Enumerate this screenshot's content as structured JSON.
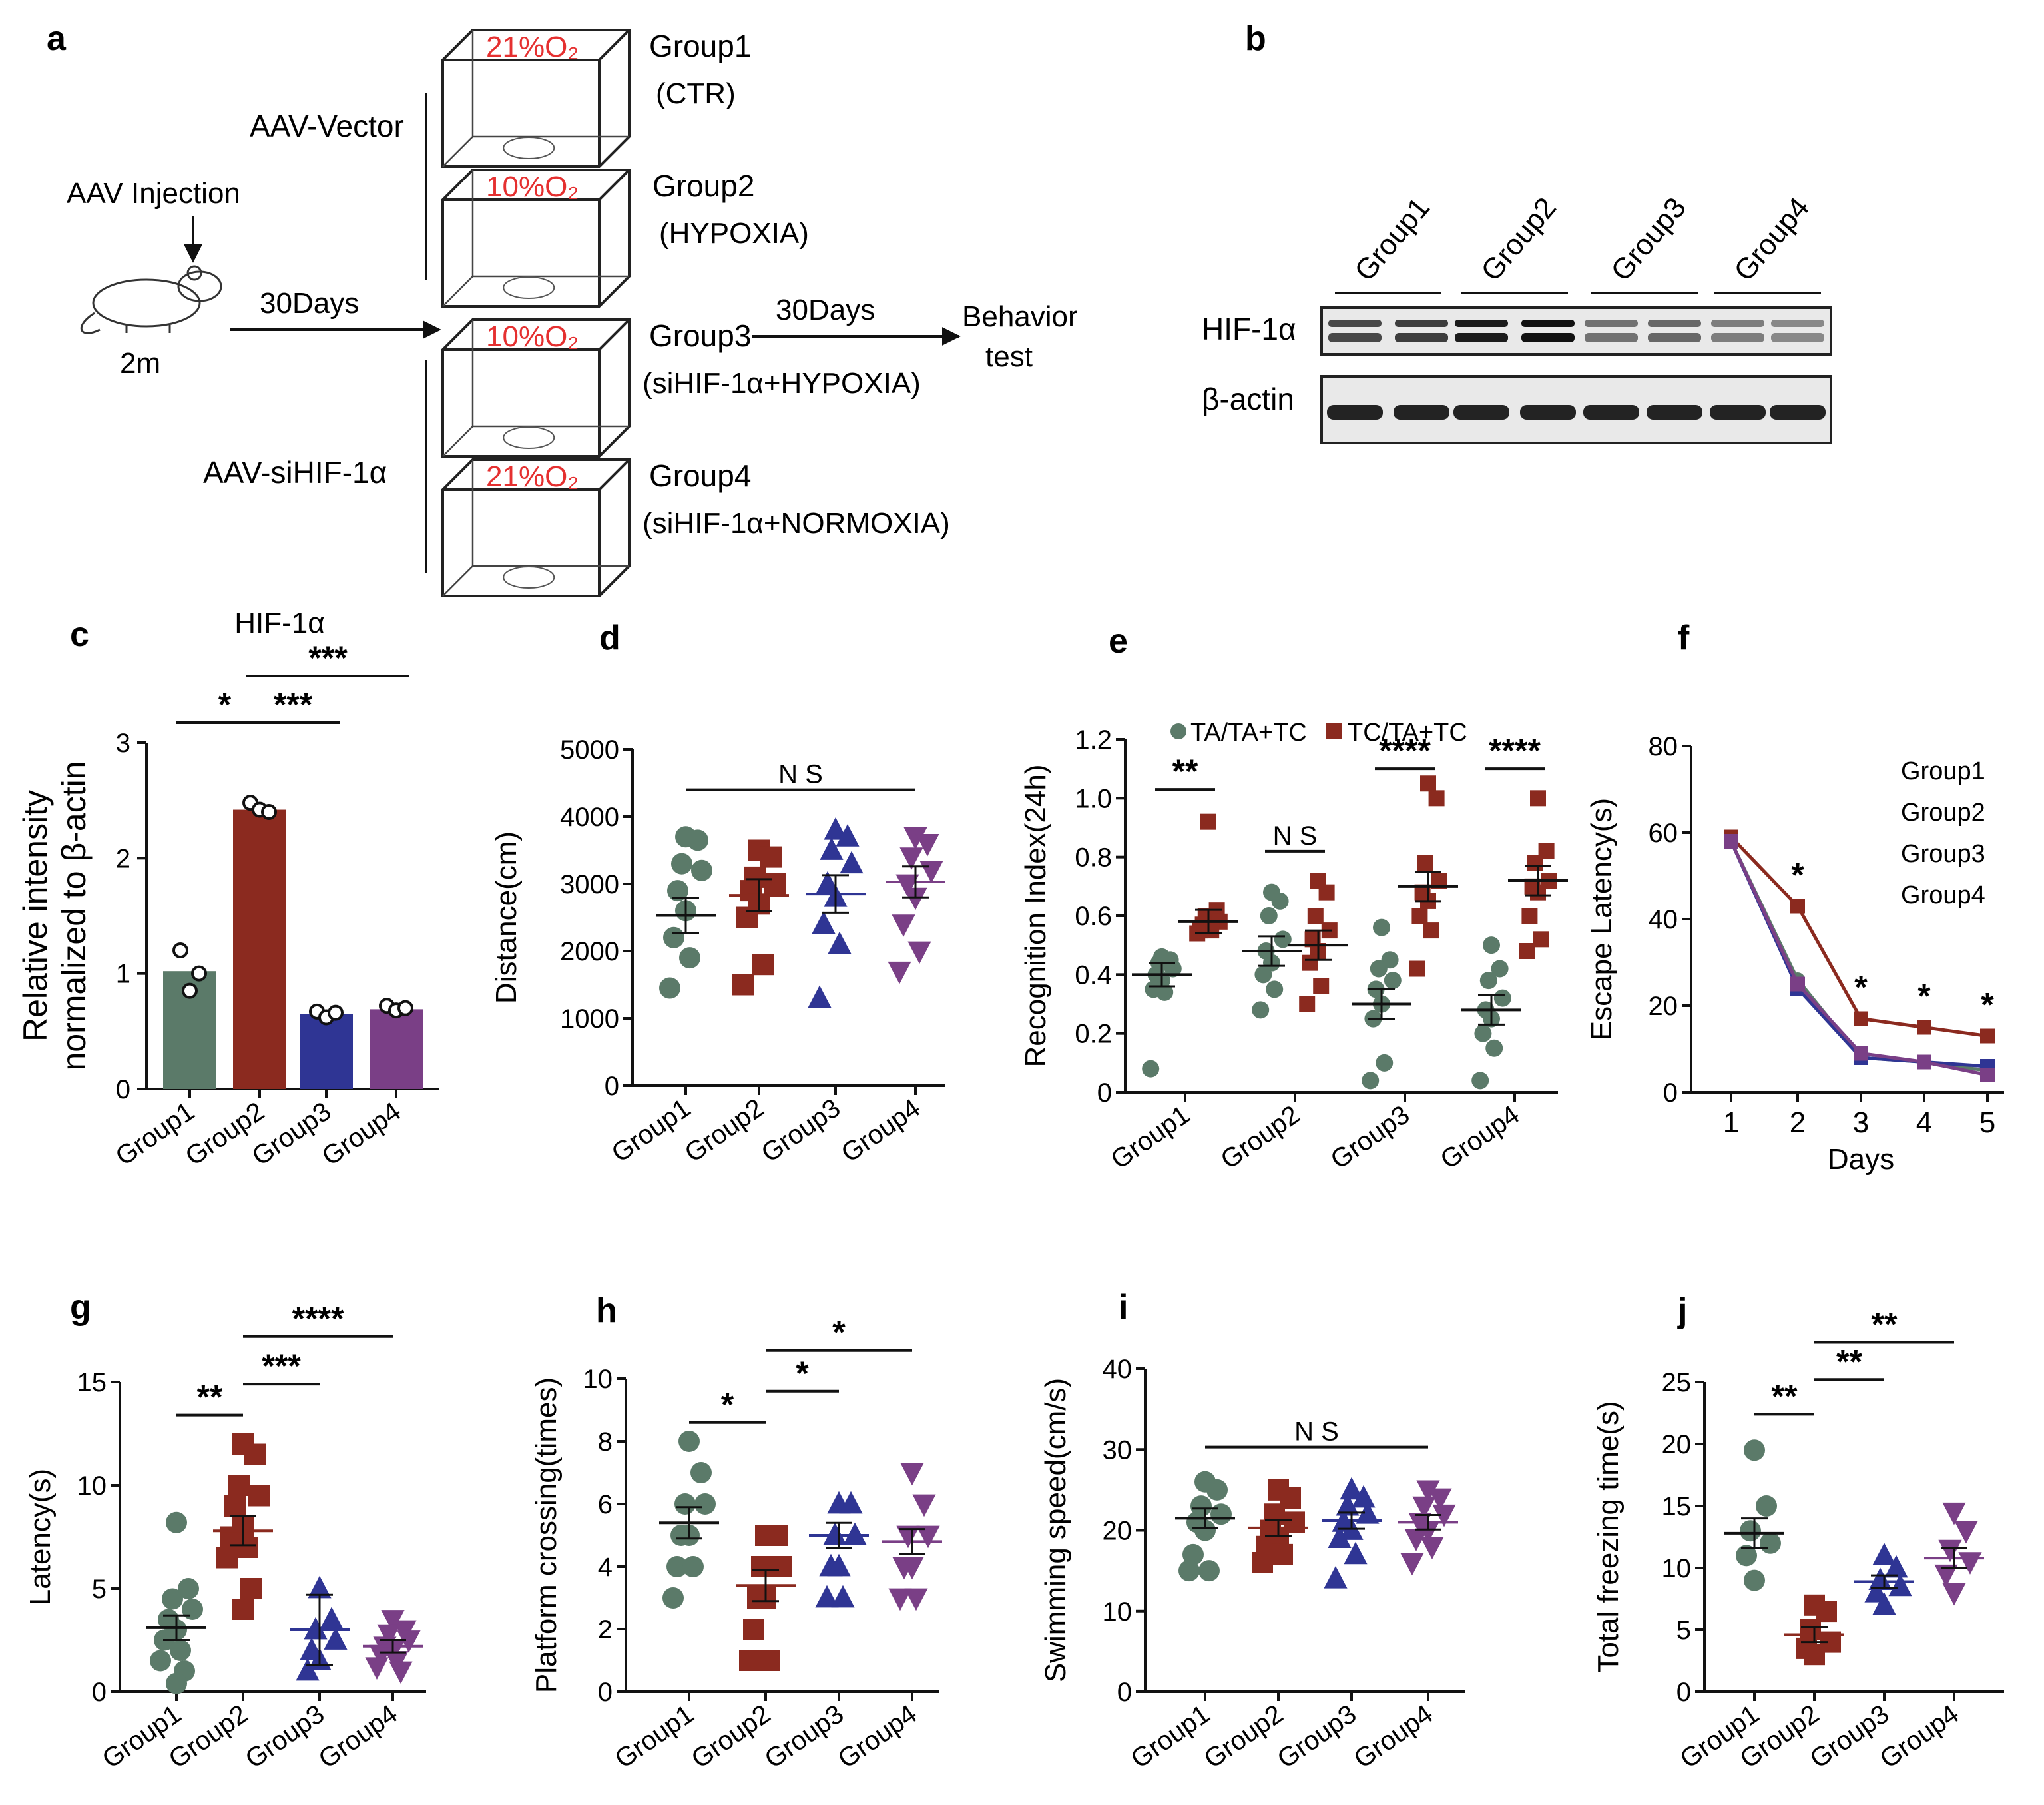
{
  "colors": {
    "group1": "#5b7a69",
    "group2": "#8b2a1f",
    "group3": "#2f3594",
    "group4": "#7a3f86",
    "red_text": "#e53030"
  },
  "panel_a": {
    "letter": "a",
    "injection": "AAV Injection",
    "age": "2m",
    "days1": "30Days",
    "vector": "AAV-Vector",
    "sihif": "AAV-siHIF-1α",
    "days2": "30Days",
    "behavior1": "Behavior",
    "behavior2": "test",
    "boxes": [
      {
        "o2": "21%O₂",
        "group": "Group1",
        "desc": "(CTR)"
      },
      {
        "o2": "10%O₂",
        "group": "Group2",
        "desc": "(HYPOXIA)"
      },
      {
        "o2": "10%O₂",
        "group": "Group3",
        "desc": "(siHIF-1α+HYPOXIA)"
      },
      {
        "o2": "21%O₂",
        "group": "Group4",
        "desc": "(siHIF-1α+NORMOXIA)"
      }
    ]
  },
  "panel_b": {
    "letter": "b",
    "groups": [
      "Group1",
      "Group2",
      "Group3",
      "Group4"
    ],
    "row1": "HIF-1α",
    "row2": "β-actin"
  },
  "chart_data": [
    {
      "panel": "c",
      "type": "bar",
      "title": "HIF-1α",
      "ylabel1": "Relative intensity",
      "ylabel2": "normalized to β-actin",
      "categories": [
        "Group1",
        "Group2",
        "Group3",
        "Group4"
      ],
      "values": [
        1.02,
        2.42,
        0.65,
        0.69
      ],
      "points": [
        [
          1.2,
          0.85,
          1.0
        ],
        [
          2.48,
          2.42,
          2.4
        ],
        [
          0.67,
          0.62,
          0.66
        ],
        [
          0.72,
          0.68,
          0.7
        ]
      ],
      "ylim": [
        0,
        3
      ],
      "yticks": [
        "0",
        "1",
        "2",
        "3"
      ],
      "sig": [
        {
          "from": 0,
          "to": 1,
          "level": 2.95,
          "text": "*"
        },
        {
          "from": 1,
          "to": 2,
          "level": 2.95,
          "text": "***"
        },
        {
          "from": 1,
          "to": 3,
          "level": 3.3,
          "text": "***"
        }
      ]
    },
    {
      "panel": "d",
      "type": "scatter",
      "ylabel": "Distance(cm)",
      "categories": [
        "Group1",
        "Group2",
        "Group3",
        "Group4"
      ],
      "ylim": [
        0,
        5000
      ],
      "yticks": [
        "0",
        "1000",
        "2000",
        "3000",
        "4000",
        "5000"
      ],
      "points": [
        [
          3700,
          3650,
          3300,
          3200,
          2900,
          2600,
          2200,
          1900,
          1450
        ],
        [
          3500,
          3400,
          3100,
          3000,
          2900,
          2700,
          2500,
          1800,
          1500
        ],
        [
          3800,
          3700,
          3500,
          3300,
          3000,
          2800,
          2400,
          2100,
          1300
        ],
        [
          3700,
          3600,
          3400,
          3200,
          3000,
          2800,
          2400,
          2000,
          1700
        ]
      ],
      "means": [
        2530,
        2830,
        2850,
        3030
      ],
      "sems": [
        260,
        240,
        280,
        230
      ],
      "sig": [
        {
          "from": 0,
          "to": 3,
          "level": 4400,
          "text": "N S"
        }
      ]
    },
    {
      "panel": "e",
      "type": "scatter",
      "ylabel": "Recognition Index(24h)",
      "categories": [
        "Group1",
        "Group2",
        "Group3",
        "Group4"
      ],
      "legend": [
        "TA/TA+TC",
        "TC/TA+TC"
      ],
      "ylim": [
        0,
        1.2
      ],
      "yticks": [
        "0",
        "0.2",
        "0.4",
        "0.6",
        "0.8",
        "1.0",
        "1.2"
      ],
      "ta": [
        [
          0.46,
          0.45,
          0.44,
          0.42,
          0.4,
          0.38,
          0.35,
          0.34,
          0.08
        ],
        [
          0.68,
          0.65,
          0.6,
          0.52,
          0.48,
          0.44,
          0.4,
          0.35,
          0.28
        ],
        [
          0.56,
          0.45,
          0.42,
          0.38,
          0.35,
          0.3,
          0.25,
          0.1,
          0.04
        ],
        [
          0.5,
          0.42,
          0.38,
          0.32,
          0.28,
          0.25,
          0.2,
          0.15,
          0.04
        ]
      ],
      "tc": [
        [
          0.92,
          0.62,
          0.6,
          0.58,
          0.57,
          0.56,
          0.55,
          0.55,
          0.54
        ],
        [
          0.72,
          0.68,
          0.6,
          0.55,
          0.52,
          0.48,
          0.44,
          0.36,
          0.3
        ],
        [
          1.05,
          1.0,
          0.78,
          0.72,
          0.68,
          0.65,
          0.6,
          0.55,
          0.42
        ],
        [
          1.0,
          0.82,
          0.78,
          0.72,
          0.7,
          0.68,
          0.6,
          0.52,
          0.48
        ]
      ],
      "ta_means": [
        0.4,
        0.48,
        0.3,
        0.28
      ],
      "tc_means": [
        0.58,
        0.5,
        0.7,
        0.72
      ],
      "sems": [
        0.04,
        0.05,
        0.05,
        0.05
      ],
      "sig": [
        {
          "group": 0,
          "text": "**",
          "level": 1.03
        },
        {
          "group": 1,
          "text": "N S",
          "level": 0.82
        },
        {
          "group": 2,
          "text": "****",
          "level": 1.1
        },
        {
          "group": 3,
          "text": "****",
          "level": 1.1
        }
      ]
    },
    {
      "panel": "f",
      "type": "line",
      "ylabel": "Escape Latency(s)",
      "xlabel": "Days",
      "x": [
        "1",
        "2",
        "3",
        "4",
        "5"
      ],
      "ylim": [
        0,
        80
      ],
      "yticks": [
        "0",
        "20",
        "40",
        "60",
        "80"
      ],
      "series": [
        {
          "name": "Group1",
          "values": [
            58,
            26,
            8,
            7,
            5
          ]
        },
        {
          "name": "Group2",
          "values": [
            59,
            43,
            17,
            15,
            13
          ]
        },
        {
          "name": "Group3",
          "values": [
            58,
            24,
            8,
            7,
            6
          ]
        },
        {
          "name": "Group4",
          "values": [
            58,
            25,
            9,
            7,
            4
          ]
        }
      ],
      "stars": [
        "",
        "*",
        "*",
        "*",
        "*"
      ]
    },
    {
      "panel": "g",
      "type": "scatter",
      "ylabel": "Latency(s)",
      "categories": [
        "Group1",
        "Group2",
        "Group3",
        "Group4"
      ],
      "ylim": [
        0,
        15
      ],
      "yticks": [
        "0",
        "5",
        "10",
        "15"
      ],
      "points": [
        [
          8.2,
          5,
          4.5,
          4,
          3.5,
          3,
          2.5,
          2,
          1.5,
          1,
          0.4
        ],
        [
          12,
          11.5,
          10,
          9.5,
          9,
          8,
          7.5,
          7,
          6.5,
          5,
          4
        ],
        [
          5,
          3.5,
          3,
          2.5,
          2,
          1.5,
          1
        ],
        [
          3.5,
          3,
          2.8,
          2.5,
          2.2,
          2,
          1.8,
          1.5,
          1.2,
          1
        ]
      ],
      "means": [
        3.1,
        7.8,
        3.0,
        2.2
      ],
      "sems": [
        0.6,
        0.7,
        1.7,
        0.3
      ],
      "sig": [
        {
          "from": 0,
          "to": 1,
          "level": 13.4,
          "text": "**"
        },
        {
          "from": 1,
          "to": 2,
          "level": 14.9,
          "text": "***"
        },
        {
          "from": 1,
          "to": 3,
          "level": 17.2,
          "text": "****"
        }
      ]
    },
    {
      "panel": "h",
      "type": "scatter",
      "ylabel": "Platform crossing(times)",
      "categories": [
        "Group1",
        "Group2",
        "Group3",
        "Group4"
      ],
      "ylim": [
        0,
        10
      ],
      "yticks": [
        "0",
        "2",
        "4",
        "6",
        "8",
        "10"
      ],
      "points": [
        [
          8,
          7,
          6,
          6,
          5,
          5,
          4,
          4,
          3
        ],
        [
          5,
          5,
          4,
          4,
          3,
          3,
          2,
          1,
          1
        ],
        [
          6,
          6,
          5,
          5,
          4,
          4,
          3,
          3
        ],
        [
          7,
          6,
          5,
          5,
          4,
          4,
          3,
          3
        ]
      ],
      "means": [
        5.4,
        3.4,
        5.0,
        4.8
      ],
      "sems": [
        0.5,
        0.5,
        0.4,
        0.4
      ],
      "sig": [
        {
          "from": 0,
          "to": 1,
          "level": 8.6,
          "text": "*"
        },
        {
          "from": 1,
          "to": 2,
          "level": 9.6,
          "text": "*"
        },
        {
          "from": 1,
          "to": 3,
          "level": 10.9,
          "text": "*"
        }
      ]
    },
    {
      "panel": "i",
      "type": "scatter",
      "ylabel": "Swimming speed(cm/s)",
      "categories": [
        "Group1",
        "Group2",
        "Group3",
        "Group4"
      ],
      "ylim": [
        0,
        40
      ],
      "yticks": [
        "0",
        "10",
        "20",
        "30",
        "40"
      ],
      "points": [
        [
          26,
          25,
          23,
          22,
          21,
          20,
          17,
          15,
          15
        ],
        [
          25,
          24,
          22,
          21,
          20,
          19,
          18,
          17,
          16
        ],
        [
          25,
          24,
          23,
          22,
          21,
          20,
          19,
          17,
          14
        ],
        [
          25,
          24,
          23,
          22,
          21,
          20,
          19,
          18,
          16
        ]
      ],
      "means": [
        21.5,
        20.3,
        21.2,
        21.0
      ],
      "sems": [
        1.2,
        1.0,
        1.0,
        0.9
      ],
      "sig": [
        {
          "from": 0,
          "to": 3,
          "level": 30.3,
          "text": "N S"
        }
      ]
    },
    {
      "panel": "j",
      "type": "scatter",
      "ylabel": "Total freezing time(s)",
      "categories": [
        "Group1",
        "Group2",
        "Group3",
        "Group4"
      ],
      "ylim": [
        0,
        25
      ],
      "yticks": [
        "0",
        "5",
        "10",
        "15",
        "20",
        "25"
      ],
      "points": [
        [
          19.5,
          15,
          13,
          12,
          11,
          9
        ],
        [
          7,
          6.5,
          5,
          4,
          3.5,
          3
        ],
        [
          11,
          10,
          9,
          8.5,
          8,
          7
        ],
        [
          14.5,
          13,
          11.5,
          10.5,
          9.5,
          8
        ]
      ],
      "means": [
        12.8,
        4.6,
        8.9,
        10.8
      ],
      "sems": [
        1.2,
        0.6,
        0.5,
        0.8
      ],
      "sig": [
        {
          "from": 0,
          "to": 1,
          "level": 22.4,
          "text": "**"
        },
        {
          "from": 1,
          "to": 2,
          "level": 25.2,
          "text": "**"
        },
        {
          "from": 1,
          "to": 3,
          "level": 28.2,
          "text": "**"
        }
      ]
    }
  ],
  "labels": {
    "c": "c",
    "d": "d",
    "e": "e",
    "f": "f",
    "g": "g",
    "h": "h",
    "i": "i",
    "j": "j"
  }
}
